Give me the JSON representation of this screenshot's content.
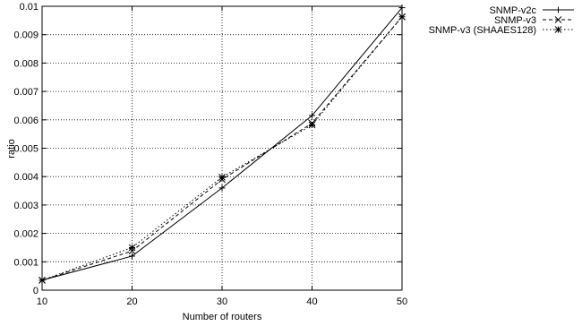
{
  "chart_data": {
    "type": "line",
    "xlabel": "Number of routers",
    "ylabel": "ratio",
    "xlim": [
      10,
      50
    ],
    "ylim": [
      0,
      0.01
    ],
    "x": [
      10,
      20,
      30,
      40,
      50
    ],
    "x_ticks": [
      "10",
      "20",
      "30",
      "40",
      "50"
    ],
    "y_ticks": [
      "0",
      "0.001",
      "0.002",
      "0.003",
      "0.004",
      "0.005",
      "0.006",
      "0.007",
      "0.008",
      "0.009",
      "0.01"
    ],
    "grid": true,
    "legend_position": "top-right, outside plot",
    "series": [
      {
        "name": "SNMP-v2c",
        "marker": "plus",
        "dash": "solid",
        "values": [
          0.00035,
          0.0012,
          0.0036,
          0.00615,
          0.00995
        ]
      },
      {
        "name": "SNMP-v3",
        "marker": "cross",
        "dash": "dashed",
        "values": [
          0.00035,
          0.00138,
          0.0039,
          0.00588,
          0.00963
        ]
      },
      {
        "name": "SNMP-v3 (SHAAES128)",
        "marker": "star",
        "dash": "dotted",
        "values": [
          0.00035,
          0.0015,
          0.00398,
          0.00582,
          0.00963
        ]
      }
    ]
  }
}
